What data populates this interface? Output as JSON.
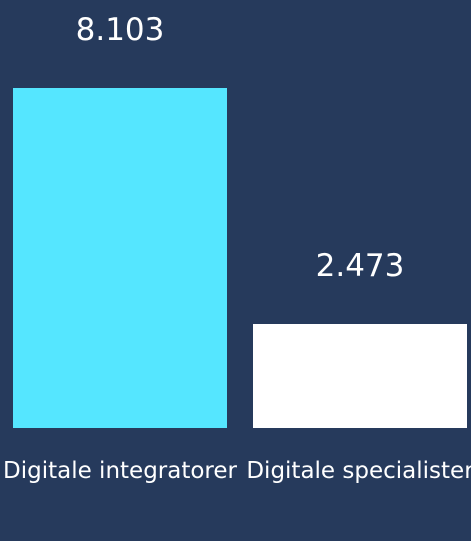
{
  "chart_data": {
    "type": "bar",
    "categories": [
      "Digitale integratorer",
      "Digitale specialister"
    ],
    "values": [
      8103,
      2473
    ],
    "value_labels": [
      "8.103",
      "2.473"
    ],
    "colors": [
      "#55e6ff",
      "#ffffff"
    ]
  }
}
